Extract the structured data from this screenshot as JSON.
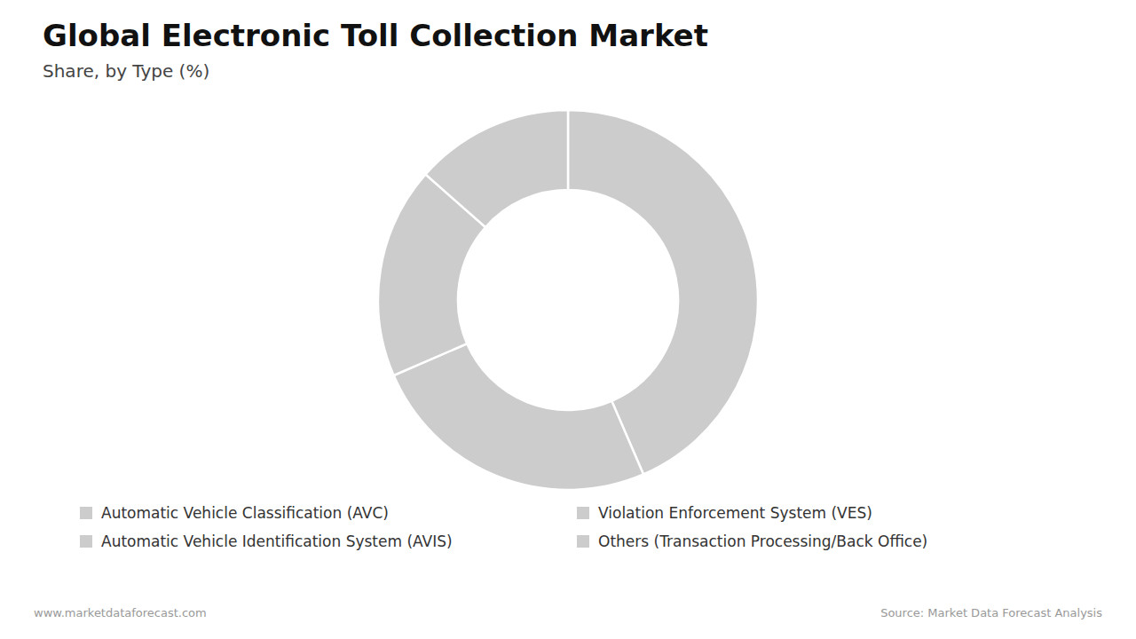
{
  "chart_data": {
    "type": "pie",
    "title": "Global Electronic Toll Collection Market",
    "subtitle": "Share, by Type (%)",
    "categories": [
      "Automatic Vehicle Classification (AVC)",
      "Automatic Vehicle Identification System (AVIS)",
      "Violation Enforcement System (VES)",
      "Others (Transaction Processing/Back Office)"
    ],
    "values": [
      43.5,
      25.0,
      18.0,
      13.5
    ],
    "color": "#cccccc",
    "legend": "bottom",
    "annotations": [
      "www.marketdataforecast.com",
      "Source: Market Data Forecast Analysis"
    ]
  }
}
